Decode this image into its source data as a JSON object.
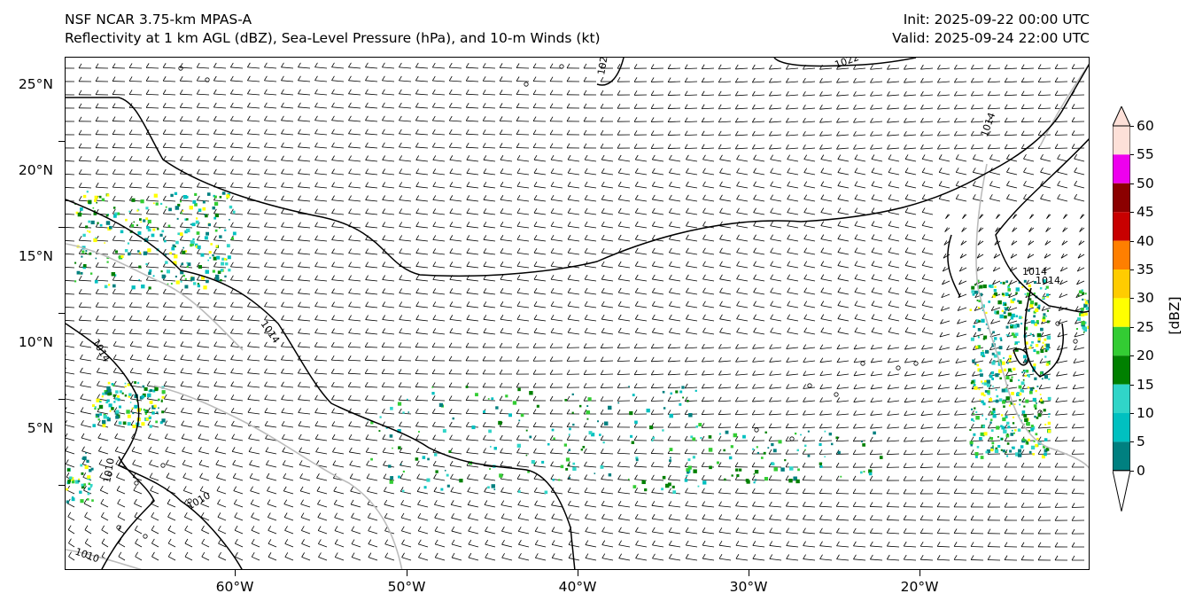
{
  "header": {
    "model": "NSF NCAR 3.75-km MPAS-A",
    "fields": "Reflectivity at 1 km AGL (dBZ), Sea-Level Pressure (hPa), and 10-m Winds (kt)",
    "init": "Init: 2025-09-22 00:00 UTC",
    "valid": "Valid: 2025-09-24 22:00 UTC"
  },
  "map": {
    "lat_labels": [
      "25°N",
      "20°N",
      "15°N",
      "10°N",
      "5°N"
    ],
    "lon_labels": [
      "60°W",
      "50°W",
      "40°W",
      "30°W",
      "20°W"
    ],
    "isobar_labels": [
      "1022",
      "1022",
      "1014",
      "1014",
      "1014",
      "1010",
      "1010",
      "1010",
      "1014",
      "1014"
    ]
  },
  "colorbar": {
    "title": "[dBZ]",
    "levels": [
      "60",
      "55",
      "50",
      "45",
      "40",
      "35",
      "30",
      "25",
      "20",
      "15",
      "10",
      "5",
      "0"
    ],
    "colors": [
      "#fde0d8",
      "#ee00ee",
      "#8b0000",
      "#c80000",
      "#ff7f00",
      "#ffcc00",
      "#ffff00",
      "#33cc33",
      "#008000",
      "#30d5c8",
      "#00c0c0",
      "#008080"
    ]
  }
}
